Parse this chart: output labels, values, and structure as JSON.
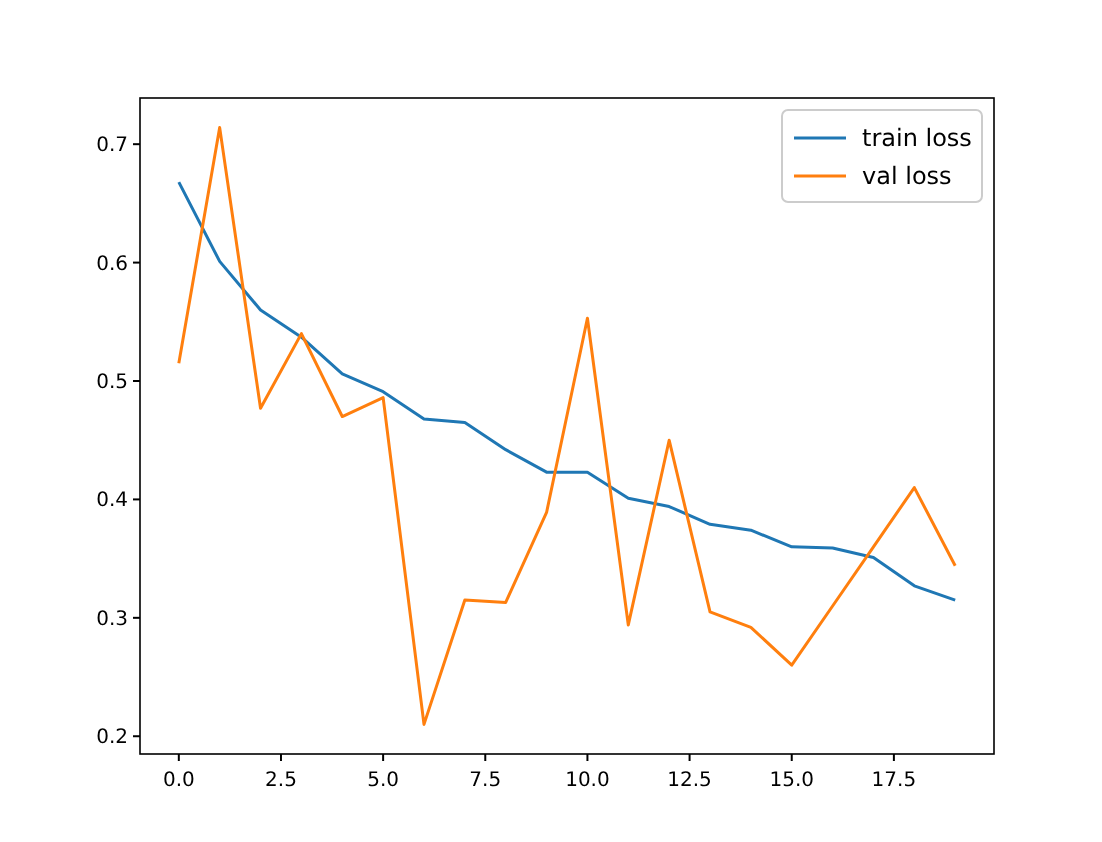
{
  "chart_data": {
    "type": "line",
    "x": [
      0,
      1,
      2,
      3,
      4,
      5,
      6,
      7,
      8,
      9,
      10,
      11,
      12,
      13,
      14,
      15,
      16,
      17,
      18,
      19
    ],
    "series": [
      {
        "name": "train loss",
        "color": "#1f77b4",
        "values": [
          0.668,
          0.601,
          0.56,
          0.537,
          0.506,
          0.491,
          0.468,
          0.465,
          0.442,
          0.423,
          0.423,
          0.401,
          0.394,
          0.379,
          0.374,
          0.36,
          0.359,
          0.351,
          0.327,
          0.315
        ]
      },
      {
        "name": "val loss",
        "color": "#ff7f0e",
        "values": [
          0.515,
          0.714,
          0.477,
          0.54,
          0.47,
          0.486,
          0.21,
          0.315,
          0.313,
          0.389,
          0.553,
          0.294,
          0.45,
          0.305,
          0.292,
          0.26,
          0.31,
          0.36,
          0.41,
          0.344
        ]
      }
    ],
    "xlim": [
      -0.95,
      19.95
    ],
    "ylim": [
      0.185,
      0.739
    ],
    "xticks": [
      {
        "value": 0,
        "label": "0.0"
      },
      {
        "value": 2.5,
        "label": "2.5"
      },
      {
        "value": 5,
        "label": "5.0"
      },
      {
        "value": 7.5,
        "label": "7.5"
      },
      {
        "value": 10,
        "label": "10.0"
      },
      {
        "value": 12.5,
        "label": "12.5"
      },
      {
        "value": 15,
        "label": "15.0"
      },
      {
        "value": 17.5,
        "label": "17.5"
      }
    ],
    "yticks": [
      0.2,
      0.3,
      0.4,
      0.5,
      0.6,
      0.7
    ],
    "legend": "top right",
    "grid": false
  }
}
